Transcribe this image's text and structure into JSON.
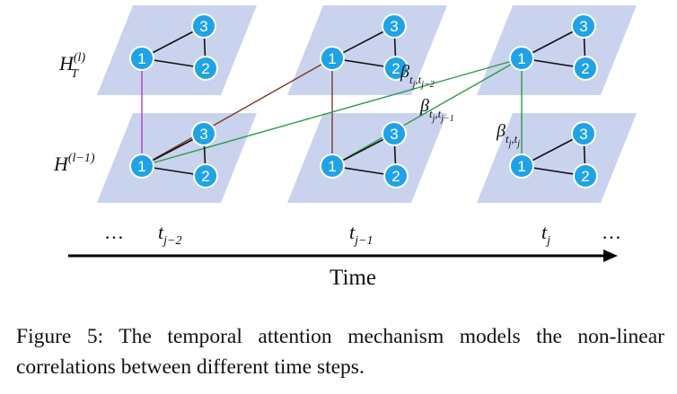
{
  "diagram": {
    "row_labels": {
      "top": {
        "base": "H",
        "sup": "(l)",
        "sub": "T"
      },
      "bottom": {
        "base": "H",
        "sup": "(l−1)"
      }
    },
    "node_labels": [
      "1",
      "2",
      "3"
    ],
    "time_labels": [
      {
        "base": "t",
        "sub": "j−2"
      },
      {
        "base": "t",
        "sub": "j−1"
      },
      {
        "base": "t",
        "sub": "j"
      }
    ],
    "ellipsis": "…",
    "axis_label": "Time",
    "attention_labels": [
      {
        "base": "β",
        "sub": "t",
        "subsub": "j",
        "rest": ",t",
        "restsub": "j−2"
      },
      {
        "base": "β",
        "sub": "t",
        "subsub": "j",
        "rest": ",t",
        "restsub": "j−1"
      },
      {
        "base": "β",
        "sub": "t",
        "subsub": "j",
        "rest": ",t",
        "restsub": "j"
      }
    ],
    "colors": {
      "plane": "#c9d3ee",
      "node": "#1fa3e6",
      "node_stroke": "#ffffff",
      "edge": "#111111",
      "link_jminus2_vertical": "#b33ec8",
      "link_jminus1_vertical": "#7a3a26",
      "link_j_to_jminus2_top": "#7a3a26",
      "attention": "#2e9a4a"
    }
  },
  "caption": {
    "label": "Figure 5:",
    "text": "The temporal attention mechanism models the non-linear correlations between different time steps."
  }
}
